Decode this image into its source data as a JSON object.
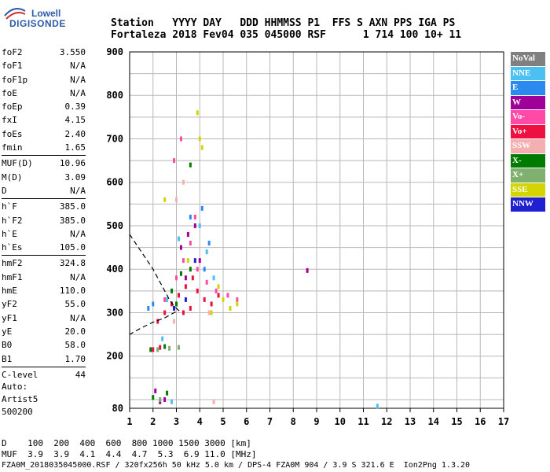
{
  "logo": {
    "line1": "Lowell",
    "line2": "DIGISONDE"
  },
  "header": {
    "line1": "Station   YYYY DAY   DDD HHMMSS P1  FFS S AXN PPS IGA PS",
    "line2": "Fortaleza 2018 Fev04 035 045000 RSF      1 714 100 10+ 11"
  },
  "params": [
    [
      {
        "k": "foF2",
        "v": "3.550"
      },
      {
        "k": "foF1",
        "v": "N/A"
      },
      {
        "k": "foF1p",
        "v": "N/A"
      },
      {
        "k": "foE",
        "v": "N/A"
      },
      {
        "k": "foEp",
        "v": "0.39"
      },
      {
        "k": "fxI",
        "v": "4.15"
      },
      {
        "k": "foEs",
        "v": "2.40"
      },
      {
        "k": "fmin",
        "v": "1.65"
      }
    ],
    [
      {
        "k": "MUF(D)",
        "v": "10.96"
      },
      {
        "k": "M(D)",
        "v": "3.09"
      },
      {
        "k": "D",
        "v": "N/A"
      }
    ],
    [
      {
        "k": "h`F",
        "v": "385.0"
      },
      {
        "k": "h`F2",
        "v": "385.0"
      },
      {
        "k": "h`E",
        "v": "N/A"
      },
      {
        "k": "h`Es",
        "v": "105.0"
      }
    ],
    [
      {
        "k": "hmF2",
        "v": "324.8"
      },
      {
        "k": "hmF1",
        "v": "N/A"
      },
      {
        "k": "hmE",
        "v": "110.0"
      },
      {
        "k": "yF2",
        "v": "55.0"
      },
      {
        "k": "yF1",
        "v": "N/A"
      },
      {
        "k": "yE",
        "v": "20.0"
      },
      {
        "k": "B0",
        "v": "58.0"
      },
      {
        "k": "B1",
        "v": "1.70"
      }
    ],
    [
      {
        "k": "C-level",
        "v": "44"
      }
    ]
  ],
  "auto": {
    "line1": "Auto:",
    "line2": "Artist5",
    "line3": "500200"
  },
  "legend": [
    {
      "label": "NoVal",
      "color": "#808080"
    },
    {
      "label": "NNE",
      "color": "#4cc0f0"
    },
    {
      "label": "E",
      "color": "#2a8af0"
    },
    {
      "label": "W",
      "color": "#a0009a"
    },
    {
      "label": "Vo-",
      "color": "#ff4aa8"
    },
    {
      "label": "Vo+",
      "color": "#ee1040"
    },
    {
      "label": "SSW",
      "color": "#f4b0b0"
    },
    {
      "label": "X-",
      "color": "#007a00"
    },
    {
      "label": "X+",
      "color": "#80b070"
    },
    {
      "label": "SSE",
      "color": "#d4d400"
    },
    {
      "label": "NNW",
      "color": "#2020d0"
    }
  ],
  "chart_data": {
    "type": "scatter",
    "xlim": [
      1,
      17
    ],
    "ylim": [
      80,
      900
    ],
    "xticks": [
      1,
      2,
      3,
      4,
      5,
      6,
      7,
      8,
      9,
      10,
      11,
      12,
      13,
      14,
      15,
      16,
      17
    ],
    "yticks": [
      80,
      200,
      300,
      400,
      500,
      600,
      700,
      800,
      900
    ],
    "grid": true,
    "series": [
      {
        "name": "Vo+",
        "color": "#ee1040",
        "points": [
          [
            2.2,
            280
          ],
          [
            2.5,
            300
          ],
          [
            2.8,
            320
          ],
          [
            3.1,
            340
          ],
          [
            3.4,
            360
          ],
          [
            3.7,
            380
          ],
          [
            3.9,
            350
          ],
          [
            4.2,
            330
          ],
          [
            4.5,
            320
          ],
          [
            4.8,
            340
          ],
          [
            3.3,
            300
          ],
          [
            3.6,
            310
          ],
          [
            2.0,
            215
          ],
          [
            2.3,
            220
          ]
        ]
      },
      {
        "name": "Vo-",
        "color": "#ff4aa8",
        "points": [
          [
            2.5,
            330
          ],
          [
            3.0,
            380
          ],
          [
            3.3,
            420
          ],
          [
            3.6,
            460
          ],
          [
            3.9,
            400
          ],
          [
            4.3,
            370
          ],
          [
            4.7,
            350
          ],
          [
            5.2,
            340
          ],
          [
            5.6,
            330
          ],
          [
            2.9,
            650
          ],
          [
            3.2,
            700
          ],
          [
            3.8,
            520
          ]
        ]
      },
      {
        "name": "W",
        "color": "#a0009a",
        "points": [
          [
            3.2,
            450
          ],
          [
            3.5,
            480
          ],
          [
            3.8,
            500
          ],
          [
            4.0,
            420
          ],
          [
            3.4,
            380
          ],
          [
            2.1,
            120
          ],
          [
            2.3,
            95
          ],
          [
            2.5,
            100
          ],
          [
            8.6,
            397
          ]
        ]
      },
      {
        "name": "NNE",
        "color": "#4cc0f0",
        "points": [
          [
            3.1,
            470
          ],
          [
            4.0,
            500
          ],
          [
            4.3,
            440
          ],
          [
            4.6,
            380
          ],
          [
            2.6,
            330
          ],
          [
            2.4,
            240
          ],
          [
            2.8,
            95
          ],
          [
            11.6,
            85
          ]
        ]
      },
      {
        "name": "E",
        "color": "#2a8af0",
        "points": [
          [
            3.6,
            520
          ],
          [
            4.1,
            540
          ],
          [
            4.4,
            460
          ],
          [
            4.2,
            400
          ],
          [
            2.0,
            320
          ],
          [
            1.8,
            310
          ]
        ]
      },
      {
        "name": "X-",
        "color": "#007a00",
        "points": [
          [
            2.8,
            350
          ],
          [
            3.2,
            390
          ],
          [
            3.6,
            400
          ],
          [
            3.0,
            320
          ],
          [
            1.9,
            215
          ],
          [
            2.5,
            222
          ],
          [
            2.0,
            105
          ],
          [
            2.6,
            115
          ],
          [
            3.6,
            640
          ]
        ]
      },
      {
        "name": "X+",
        "color": "#80b070",
        "points": [
          [
            2.2,
            215
          ],
          [
            2.7,
            218
          ],
          [
            3.1,
            220
          ],
          [
            2.3,
            100
          ]
        ]
      },
      {
        "name": "SSE",
        "color": "#d4d400",
        "points": [
          [
            4.0,
            700
          ],
          [
            3.9,
            760
          ],
          [
            4.1,
            680
          ],
          [
            4.8,
            360
          ],
          [
            5.0,
            330
          ],
          [
            5.3,
            310
          ],
          [
            5.6,
            320
          ],
          [
            4.5,
            300
          ],
          [
            3.5,
            420
          ],
          [
            2.5,
            560
          ]
        ]
      },
      {
        "name": "SSW",
        "color": "#f4b0b0",
        "points": [
          [
            3.0,
            560
          ],
          [
            3.3,
            600
          ],
          [
            2.9,
            280
          ],
          [
            4.4,
            300
          ],
          [
            4.6,
            95
          ]
        ]
      },
      {
        "name": "NNW",
        "color": "#2020d0",
        "points": [
          [
            3.4,
            330
          ],
          [
            3.8,
            420
          ],
          [
            2.9,
            310
          ]
        ]
      }
    ],
    "profile": [
      [
        1.0,
        480
      ],
      [
        1.5,
        440
      ],
      [
        2.0,
        400
      ],
      [
        2.4,
        360
      ],
      [
        2.7,
        330
      ],
      [
        2.9,
        315
      ],
      [
        3.1,
        305
      ],
      [
        2.9,
        300
      ],
      [
        2.5,
        288
      ],
      [
        2.0,
        278
      ],
      [
        1.5,
        265
      ],
      [
        1.0,
        250
      ]
    ]
  },
  "bottom": {
    "line1": "D    100  200  400  600  800 1000 1500 3000 [km]",
    "line2": "MUF  3.9  3.9  4.1  4.4  4.7  5.3  6.9 11.0 [MHz]"
  },
  "footer": "FZA0M_2018035045000.RSF / 320fx256h 50 kHz 5.0 km / DPS-4 FZA0M 904 / 3.9 S 321.6 E  Ion2Png 1.3.20"
}
